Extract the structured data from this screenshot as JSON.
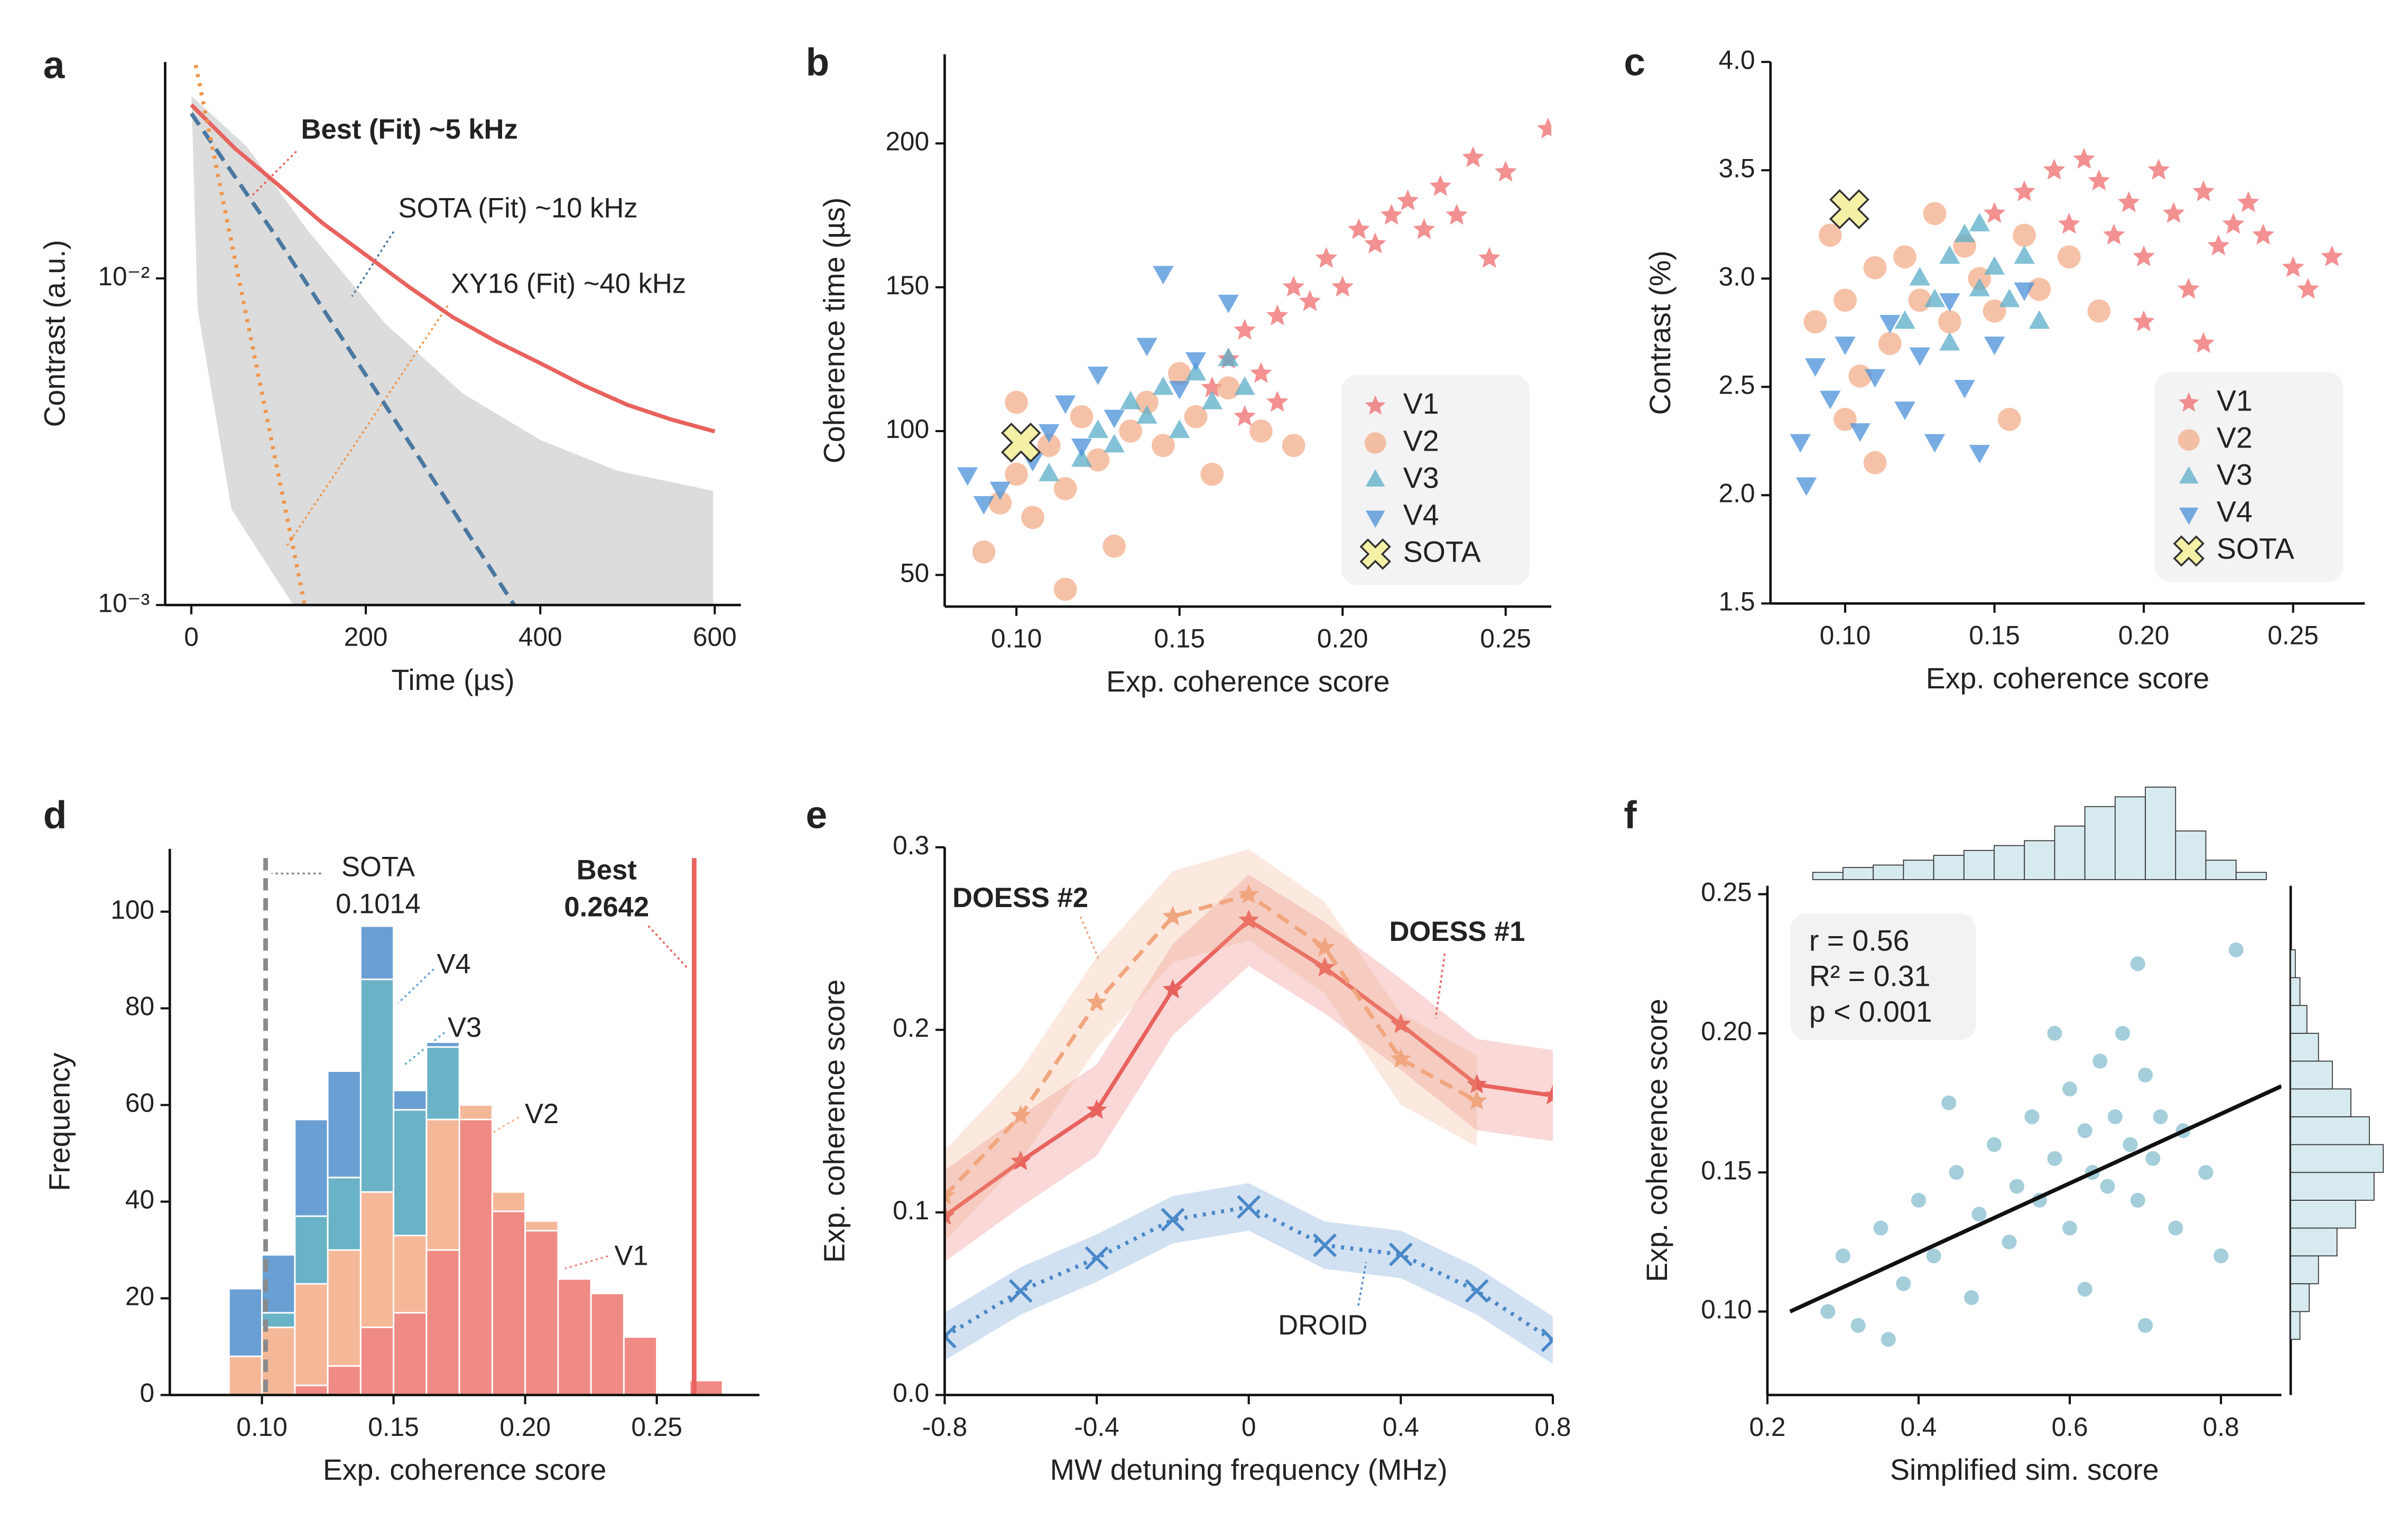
{
  "chart_data": [
    {
      "type": "line",
      "label": "a",
      "xlabel": "Time (µs)",
      "ylabel": "Contrast (a.u.)",
      "log_y": true,
      "xlim": [
        -30,
        630
      ],
      "ylim": [
        0.001,
        0.046
      ],
      "xticks": [
        0,
        200,
        400,
        600
      ],
      "yticks": [
        {
          "value": 0.001,
          "label": "10⁻³"
        },
        {
          "value": 0.01,
          "label": "10⁻²"
        }
      ],
      "series": [
        {
          "name": "Best (Fit) ~5 kHz",
          "color": "#e8625e",
          "dash": "solid",
          "x": [
            0,
            50,
            100,
            150,
            200,
            250,
            300,
            350,
            400,
            450,
            500,
            550,
            600
          ],
          "values": [
            0.034,
            0.025,
            0.0193,
            0.0148,
            0.0118,
            0.0094,
            0.0076,
            0.0064,
            0.0055,
            0.0047,
            0.0041,
            0.0037,
            0.0034
          ]
        },
        {
          "name": "SOTA (Fit) ~10 kHz",
          "color": "#4a78a0",
          "dash": "dashed",
          "x": [
            0,
            100,
            200,
            300,
            370
          ],
          "values": [
            0.032,
            0.0131,
            0.00506,
            0.00195,
            0.001
          ]
        },
        {
          "name": "XY16 (Fit) ~40 kHz",
          "color": "#f0954a",
          "dash": "dotted",
          "x": [
            5,
            130
          ],
          "values": [
            0.045,
            0.001
          ]
        }
      ]
    },
    {
      "type": "scatter",
      "label": "b",
      "xlabel": "Exp. coherence score",
      "ylabel": "Coherence time (µs)",
      "xlim": [
        0.078,
        0.264
      ],
      "ylim": [
        39,
        231
      ],
      "xticks": [
        {
          "value": 0.1,
          "label": "0.10"
        },
        0.15,
        {
          "value": 0.2,
          "label": "0.20"
        },
        0.25
      ],
      "yticks": [
        50,
        100,
        150,
        200
      ],
      "legend": "lower right",
      "series": [
        {
          "name": "V1",
          "color": "#ee6b6e",
          "marker": "star",
          "x": [
            0.16,
            0.165,
            0.17,
            0.175,
            0.18,
            0.185,
            0.19,
            0.195,
            0.2,
            0.205,
            0.21,
            0.215,
            0.22,
            0.225,
            0.23,
            0.235,
            0.24,
            0.245,
            0.25,
            0.263,
            0.18,
            0.17
          ],
          "values": [
            115,
            125,
            135,
            120,
            140,
            150,
            145,
            160,
            150,
            170,
            165,
            175,
            180,
            170,
            185,
            175,
            195,
            160,
            190,
            205,
            110,
            105
          ]
        },
        {
          "name": "V2",
          "color": "#f3ad8a",
          "marker": "circle",
          "x": [
            0.09,
            0.095,
            0.1,
            0.105,
            0.11,
            0.115,
            0.12,
            0.125,
            0.13,
            0.135,
            0.14,
            0.145,
            0.15,
            0.155,
            0.16,
            0.165,
            0.175,
            0.185,
            0.115,
            0.1
          ],
          "values": [
            58,
            75,
            85,
            70,
            95,
            80,
            105,
            90,
            60,
            100,
            110,
            95,
            120,
            105,
            85,
            115,
            100,
            95,
            45,
            110
          ]
        },
        {
          "name": "V3",
          "color": "#5aaec8",
          "marker": "triangle-up",
          "x": [
            0.11,
            0.12,
            0.125,
            0.13,
            0.135,
            0.14,
            0.145,
            0.15,
            0.155,
            0.16,
            0.165,
            0.17
          ],
          "values": [
            85,
            90,
            100,
            95,
            110,
            105,
            115,
            100,
            120,
            110,
            125,
            115
          ]
        },
        {
          "name": "V4",
          "color": "#4a90d9",
          "marker": "triangle-down",
          "x": [
            0.085,
            0.09,
            0.095,
            0.105,
            0.11,
            0.115,
            0.12,
            0.125,
            0.13,
            0.14,
            0.145,
            0.15,
            0.155,
            0.165
          ],
          "values": [
            85,
            75,
            80,
            90,
            100,
            110,
            95,
            120,
            105,
            130,
            155,
            115,
            125,
            145
          ]
        },
        {
          "name": "SOTA",
          "color": "#f4f1a6",
          "marker": "x",
          "x": [
            0.1014
          ],
          "values": [
            96
          ]
        }
      ]
    },
    {
      "type": "scatter",
      "label": "c",
      "xlabel": "Exp. coherence score",
      "ylabel": "Contrast (%)",
      "xlim": [
        0.075,
        0.274
      ],
      "ylim": [
        1.5,
        4.0
      ],
      "xticks": [
        {
          "value": 0.1,
          "label": "0.10"
        },
        0.15,
        {
          "value": 0.2,
          "label": "0.20"
        },
        0.25
      ],
      "yticks": [
        1.5,
        {
          "value": 2,
          "label": "2.0"
        },
        2.5,
        {
          "value": 3,
          "label": "3.0"
        },
        3.5,
        {
          "value": 4,
          "label": "4.0"
        }
      ],
      "legend": "lower right",
      "series": [
        {
          "name": "V1",
          "color": "#ee6b6e",
          "marker": "star",
          "x": [
            0.15,
            0.16,
            0.17,
            0.175,
            0.18,
            0.185,
            0.19,
            0.195,
            0.2,
            0.205,
            0.21,
            0.215,
            0.22,
            0.225,
            0.23,
            0.235,
            0.24,
            0.25,
            0.255,
            0.263,
            0.22,
            0.2
          ],
          "values": [
            3.3,
            3.4,
            3.5,
            3.25,
            3.55,
            3.45,
            3.2,
            3.35,
            3.1,
            3.5,
            3.3,
            2.95,
            3.4,
            3.15,
            3.25,
            3.35,
            3.2,
            3.05,
            2.95,
            3.1,
            2.7,
            2.8
          ]
        },
        {
          "name": "V2",
          "color": "#f3ad8a",
          "marker": "circle",
          "x": [
            0.09,
            0.095,
            0.1,
            0.105,
            0.11,
            0.115,
            0.12,
            0.125,
            0.13,
            0.135,
            0.14,
            0.145,
            0.15,
            0.155,
            0.16,
            0.165,
            0.175,
            0.185,
            0.11,
            0.1
          ],
          "values": [
            2.8,
            3.2,
            2.9,
            2.55,
            3.05,
            2.7,
            3.1,
            2.9,
            3.3,
            2.8,
            3.15,
            3.0,
            2.85,
            2.35,
            3.2,
            2.95,
            3.1,
            2.85,
            2.15,
            2.35
          ]
        },
        {
          "name": "V3",
          "color": "#5aaec8",
          "marker": "triangle-up",
          "x": [
            0.12,
            0.125,
            0.13,
            0.135,
            0.14,
            0.145,
            0.15,
            0.155,
            0.16,
            0.135,
            0.145,
            0.165
          ],
          "values": [
            2.8,
            3.0,
            2.9,
            3.1,
            3.2,
            2.95,
            3.05,
            2.9,
            3.1,
            2.7,
            3.25,
            2.8
          ]
        },
        {
          "name": "V4",
          "color": "#4a90d9",
          "marker": "triangle-down",
          "x": [
            0.085,
            0.087,
            0.09,
            0.095,
            0.1,
            0.105,
            0.11,
            0.115,
            0.12,
            0.125,
            0.13,
            0.135,
            0.14,
            0.145,
            0.15,
            0.16
          ],
          "values": [
            2.25,
            2.05,
            2.6,
            2.45,
            2.7,
            2.3,
            2.55,
            2.8,
            2.4,
            2.65,
            2.25,
            2.9,
            2.5,
            2.2,
            2.7,
            2.95
          ]
        },
        {
          "name": "SOTA",
          "color": "#f4f1a6",
          "marker": "x",
          "x": [
            0.1014
          ],
          "values": [
            3.32
          ]
        }
      ]
    },
    {
      "type": "histogram",
      "label": "d",
      "xlabel": "Exp. coherence score",
      "ylabel": "Frequency",
      "xlim": [
        0.065,
        0.289
      ],
      "ylim": [
        0,
        113
      ],
      "xticks": [
        {
          "value": 0.1,
          "label": "0.10"
        },
        0.15,
        {
          "value": 0.2,
          "label": "0.20"
        },
        0.25
      ],
      "yticks": [
        0,
        20,
        40,
        60,
        80,
        100
      ],
      "bins": [
        0.0875,
        0.1,
        0.1125,
        0.125,
        0.1375,
        0.15,
        0.1625,
        0.175,
        0.1875,
        0.2,
        0.2125,
        0.225,
        0.2375,
        0.25,
        0.2625,
        0.275
      ],
      "series": [
        {
          "name": "V1",
          "color": "#f08a84",
          "values": [
            0,
            0,
            2,
            6,
            14,
            17,
            30,
            57,
            38,
            34,
            24,
            21,
            12,
            0,
            3
          ]
        },
        {
          "name": "V2",
          "color": "#f4b899",
          "values": [
            8,
            14,
            21,
            24,
            28,
            16,
            27,
            3,
            4,
            2,
            0,
            0,
            0,
            0,
            0
          ]
        },
        {
          "name": "V3",
          "color": "#6ab2c6",
          "values": [
            0,
            3,
            14,
            15,
            44,
            26,
            15,
            0,
            0,
            0,
            0,
            0,
            0,
            0,
            0
          ]
        },
        {
          "name": "V4",
          "color": "#6a9fd4",
          "values": [
            14,
            12,
            20,
            22,
            11,
            4,
            1,
            0,
            0,
            0,
            0,
            0,
            0,
            0,
            0
          ]
        }
      ],
      "markers": [
        {
          "name": "SOTA",
          "value": 0.1014,
          "color": "#8a8a8a"
        },
        {
          "name": "Best",
          "value": 0.2642,
          "color": "#e8625e"
        }
      ]
    },
    {
      "type": "line",
      "label": "e",
      "xlabel": "MW detuning frequency (MHz)",
      "ylabel": "Exp. coherence score",
      "xlim": [
        -0.8,
        0.8
      ],
      "ylim": [
        0,
        0.3
      ],
      "xticks": [
        -0.8,
        -0.4,
        0,
        0.4,
        0.8
      ],
      "yticks": [
        {
          "value": 0,
          "label": "0.0"
        },
        0.1,
        0.2,
        0.3
      ],
      "x": [
        -0.8,
        -0.6,
        -0.4,
        -0.2,
        0,
        0.2,
        0.4,
        0.6,
        0.8
      ],
      "series": [
        {
          "name": "DOESS #1",
          "color": "#e8625e",
          "dash": "solid",
          "marker": "star",
          "values": [
            0.098,
            0.128,
            0.156,
            0.222,
            0.26,
            0.234,
            0.203,
            0.17,
            0.164
          ],
          "errors": [
            0.025,
            0.025,
            0.025,
            0.025,
            0.025,
            0.025,
            0.025,
            0.025,
            0.025
          ]
        },
        {
          "name": "DOESS #2",
          "color": "#f0a67e",
          "dash": "dashed",
          "marker": "star",
          "values": [
            0.109,
            0.153,
            0.215,
            0.262,
            0.274,
            0.245,
            0.184,
            0.161,
            null
          ],
          "errors": [
            0.025,
            0.025,
            0.025,
            0.025,
            0.025,
            0.025,
            0.025,
            0.025,
            null
          ]
        },
        {
          "name": "DROID",
          "color": "#4a88c8",
          "dash": "dotted",
          "marker": "cross",
          "values": [
            0.032,
            0.057,
            0.075,
            0.096,
            0.103,
            0.082,
            0.077,
            0.057,
            0.03
          ],
          "errors": [
            0.013,
            0.013,
            0.013,
            0.013,
            0.013,
            0.013,
            0.013,
            0.013,
            0.013
          ]
        }
      ]
    },
    {
      "type": "scatter",
      "label": "f",
      "xlabel": "Simplified sim. score",
      "ylabel": "Exp. coherence score",
      "xlim": [
        0.2,
        0.88
      ],
      "ylim": [
        0.07,
        0.253
      ],
      "xticks": [
        0.2,
        0.4,
        0.6,
        0.8
      ],
      "yticks": [
        {
          "value": 0.1,
          "label": "0.10"
        },
        0.15,
        {
          "value": 0.2,
          "label": "0.20"
        },
        0.25
      ],
      "annotations": [
        "r = 0.56",
        "R² = 0.31",
        "p < 0.001"
      ],
      "series": [
        {
          "color": "#4a9db5",
          "marker": "circle",
          "x": [
            0.28,
            0.3,
            0.32,
            0.35,
            0.38,
            0.4,
            0.42,
            0.45,
            0.47,
            0.48,
            0.5,
            0.52,
            0.53,
            0.55,
            0.56,
            0.58,
            0.6,
            0.6,
            0.62,
            0.63,
            0.64,
            0.65,
            0.66,
            0.67,
            0.68,
            0.69,
            0.7,
            0.71,
            0.72,
            0.74,
            0.75,
            0.78,
            0.8,
            0.82,
            0.69,
            0.62,
            0.44,
            0.36,
            0.58,
            0.7
          ],
          "values": [
            0.1,
            0.12,
            0.095,
            0.13,
            0.11,
            0.14,
            0.12,
            0.15,
            0.105,
            0.135,
            0.16,
            0.125,
            0.145,
            0.17,
            0.14,
            0.155,
            0.18,
            0.13,
            0.165,
            0.15,
            0.19,
            0.145,
            0.17,
            0.2,
            0.16,
            0.14,
            0.185,
            0.155,
            0.17,
            0.13,
            0.165,
            0.15,
            0.12,
            0.23,
            0.225,
            0.108,
            0.175,
            0.09,
            0.2,
            0.095
          ]
        }
      ],
      "fit": {
        "color": "#111111",
        "x": [
          0.23,
          0.88
        ],
        "values": [
          0.1,
          0.181
        ]
      },
      "x_hist": {
        "color": "#d6eaef",
        "bins": [
          0.26,
          0.3,
          0.34,
          0.38,
          0.42,
          0.46,
          0.5,
          0.54,
          0.58,
          0.62,
          0.66,
          0.7,
          0.74,
          0.78,
          0.82,
          0.86
        ],
        "counts": [
          3,
          5,
          6,
          8,
          10,
          12,
          14,
          16,
          22,
          30,
          34,
          38,
          20,
          8,
          3
        ]
      },
      "y_hist": {
        "color": "#d6eaef",
        "bins": [
          0.09,
          0.1,
          0.11,
          0.12,
          0.13,
          0.14,
          0.15,
          0.16,
          0.17,
          0.18,
          0.19,
          0.2,
          0.21,
          0.22,
          0.23
        ],
        "counts": [
          4,
          8,
          12,
          20,
          28,
          36,
          40,
          34,
          26,
          18,
          12,
          7,
          4,
          2
        ]
      }
    }
  ]
}
